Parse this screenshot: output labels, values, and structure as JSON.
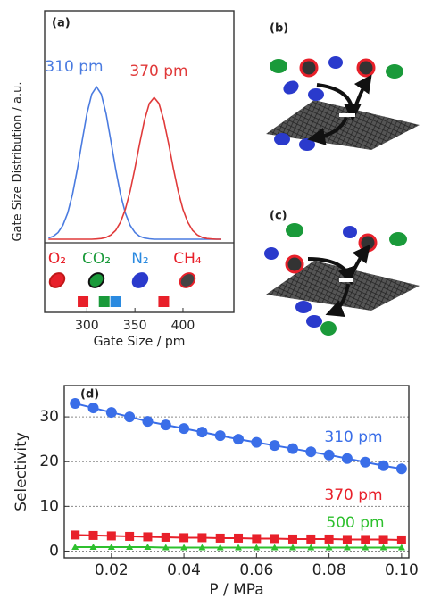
{
  "chart_data": [
    {
      "type": "line",
      "panel_label": "(a)",
      "ylabel": "Gate Size Distribution  / a.u.",
      "xlabel": "Gate Size / pm",
      "x": [
        260,
        265,
        270,
        275,
        280,
        285,
        290,
        295,
        300,
        305,
        310,
        315,
        320,
        325,
        330,
        335,
        340,
        345,
        350,
        355,
        360,
        365,
        370,
        375,
        380,
        385,
        390,
        395,
        400,
        405,
        410,
        415,
        420,
        425,
        430,
        435,
        440
      ],
      "series": [
        {
          "name": "310 pm",
          "color": "#4a7be0",
          "values": [
            0.008,
            0.019,
            0.044,
            0.091,
            0.172,
            0.295,
            0.458,
            0.644,
            0.823,
            0.952,
            1,
            0.952,
            0.823,
            0.644,
            0.458,
            0.295,
            0.172,
            0.091,
            0.044,
            0.019,
            0.008,
            0.003,
            0,
            0,
            0,
            0,
            0,
            0,
            0,
            0,
            0,
            0,
            0,
            0,
            0,
            0,
            0
          ]
        },
        {
          "name": "370 pm",
          "color": "#e03a3a",
          "values": [
            0,
            0,
            0,
            0,
            0,
            0,
            0,
            0,
            0,
            0,
            0.002,
            0.005,
            0.012,
            0.028,
            0.058,
            0.112,
            0.196,
            0.315,
            0.465,
            0.63,
            0.782,
            0.891,
            0.93,
            0.891,
            0.782,
            0.63,
            0.465,
            0.315,
            0.196,
            0.112,
            0.058,
            0.028,
            0.012,
            0.005,
            0.002,
            0,
            0
          ]
        }
      ],
      "xlim": [
        256,
        453
      ],
      "xticks": [
        300,
        350,
        400
      ],
      "ylim": [
        0,
        1.5
      ],
      "gas_markers": [
        {
          "label": "O₂",
          "color": "#e8202a",
          "x": 296
        },
        {
          "label": "CO₂",
          "color": "#1a9a3a",
          "x": 318
        },
        {
          "label": "N₂",
          "color": "#2a8ae0",
          "x": 330
        },
        {
          "label": "CH₄",
          "color": "#e8202a",
          "x": 380
        }
      ]
    },
    {
      "type": "scatter",
      "panel_label": "(d)",
      "ylabel": "Selectivity",
      "xlabel": "P / MPa",
      "x": [
        0.01,
        0.015,
        0.02,
        0.025,
        0.03,
        0.035,
        0.04,
        0.045,
        0.05,
        0.055,
        0.06,
        0.065,
        0.07,
        0.075,
        0.08,
        0.085,
        0.09,
        0.095,
        0.1
      ],
      "series": [
        {
          "name": "310 pm",
          "color": "#3a6ee8",
          "marker": "circle",
          "values": [
            33,
            32,
            31,
            30,
            29,
            28.2,
            27.4,
            26.6,
            25.8,
            25,
            24.3,
            23.6,
            22.9,
            22.2,
            21.5,
            20.7,
            19.9,
            19.1,
            18.4
          ]
        },
        {
          "name": "370 pm",
          "color": "#e8202a",
          "marker": "square",
          "values": [
            3.6,
            3.5,
            3.4,
            3.3,
            3.2,
            3.1,
            3,
            3,
            2.9,
            2.9,
            2.8,
            2.8,
            2.7,
            2.7,
            2.7,
            2.6,
            2.6,
            2.6,
            2.5
          ]
        },
        {
          "name": "500 pm",
          "color": "#2ec02e",
          "marker": "triangle",
          "values": [
            0.9,
            0.9,
            0.9,
            0.9,
            0.9,
            0.8,
            0.8,
            0.8,
            0.8,
            0.8,
            0.8,
            0.8,
            0.8,
            0.8,
            0.8,
            0.8,
            0.8,
            0.8,
            0.8
          ]
        }
      ],
      "xlim": [
        0.007,
        0.102
      ],
      "xticks": [
        0.02,
        0.04,
        0.06,
        0.08,
        {
          "value": 0.1,
          "label": "0.10"
        }
      ],
      "ylim": [
        -1.5,
        37
      ],
      "yticks": [
        0,
        10,
        20,
        30
      ],
      "grid": true
    }
  ],
  "panels": [
    {
      "label": "(b)"
    },
    {
      "label": "(c)"
    }
  ]
}
